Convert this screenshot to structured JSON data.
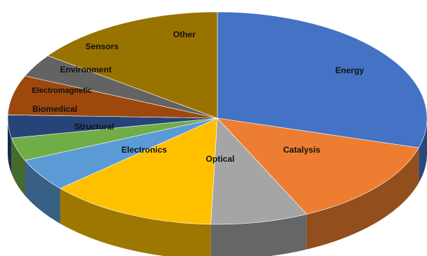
{
  "chart_data": {
    "type": "pie",
    "style": "3d",
    "title": "",
    "unit": "percent",
    "slices": [
      {
        "label": "Energy",
        "value": 29.5,
        "color": "#4472C4"
      },
      {
        "label": "Catalysis",
        "value": 13.5,
        "color": "#ED7D31"
      },
      {
        "label": "Optical",
        "value": 7.5,
        "color": "#A5A5A5"
      },
      {
        "label": "Electronics",
        "value": 13.0,
        "color": "#FFC000"
      },
      {
        "label": "Structural",
        "value": 5.0,
        "color": "#5B9BD5"
      },
      {
        "label": "Biomedical",
        "value": 3.5,
        "color": "#70AD47"
      },
      {
        "label": "Electromagnetic",
        "value": 3.5,
        "color": "#264478"
      },
      {
        "label": "Environment",
        "value": 6.0,
        "color": "#9E480E"
      },
      {
        "label": "Sensors",
        "value": 3.5,
        "color": "#636363"
      },
      {
        "label": "Other",
        "value": 15.0,
        "color": "#997300"
      }
    ],
    "start_angle_deg": 0,
    "direction": "clockwise",
    "legend": "none"
  }
}
